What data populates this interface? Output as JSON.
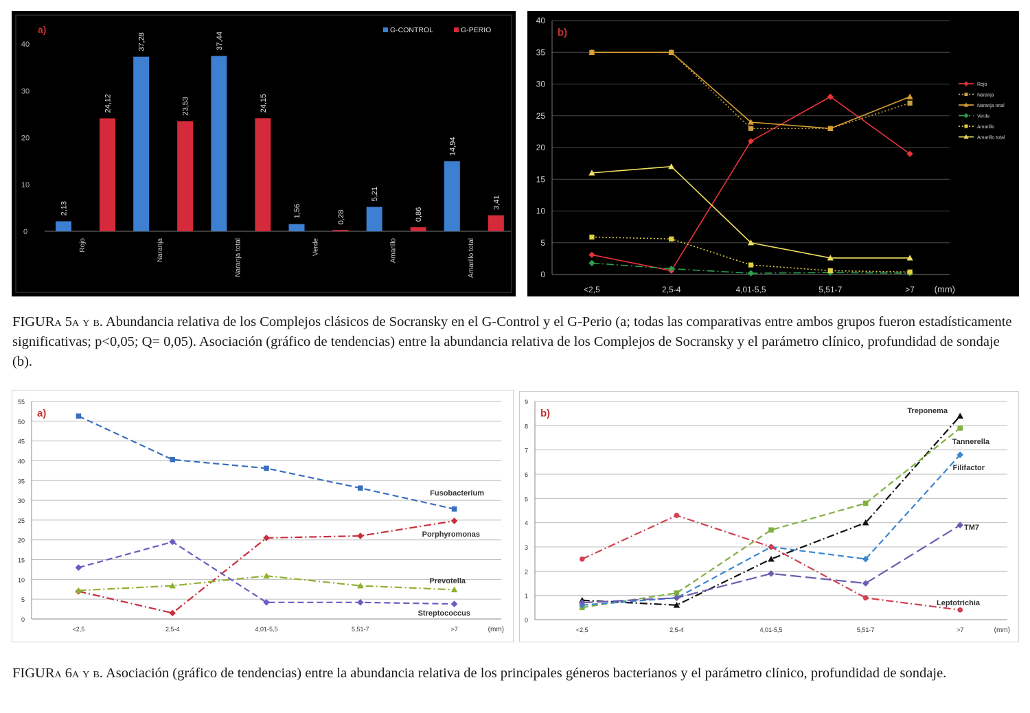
{
  "caption5": {
    "label": "FIGURa 5a y b.",
    "text": "Abundancia relativa de los Complejos clásicos de Socransky en el G-Control y el G-Perio (a; todas las comparativas entre ambos grupos fueron estadísticamente significativas; p<0,05; Q= 0,05). Asociación (gráfico de tendencias) entre la abundancia relativa de los Complejos de Socransky y el parámetro clínico, profundidad de sondaje (b)."
  },
  "caption6": {
    "label": "FIGURa 6a y b.",
    "text": "Asociación (gráfico de tendencias) entre la abundancia relativa de los principales géneros bacterianos y el parámetro clínico, profundidad de sondaje."
  },
  "chart_data": [
    {
      "id": "fig5a",
      "type": "bar",
      "panel_label": "a)",
      "categories": [
        "Rojo",
        "Naranja",
        "Naranja total",
        "Verde",
        "Amarillo",
        "Amarillo total"
      ],
      "series": [
        {
          "name": "G-CONTROL",
          "color": "#3d7fd1",
          "values": [
            2.13,
            37.28,
            37.44,
            1.56,
            5.21,
            14.94
          ],
          "labels": [
            "2,13",
            "37,28",
            "37,44",
            "1,56",
            "5,21",
            "14,94"
          ]
        },
        {
          "name": "G-PERIO",
          "color": "#d42a3a",
          "values": [
            24.12,
            23.53,
            24.15,
            0.28,
            0.86,
            3.41
          ],
          "labels": [
            "24,12",
            "23,53",
            "24,15",
            "0,28",
            "0,86",
            "3,41"
          ]
        }
      ],
      "ylim": [
        0,
        45
      ],
      "yticks": [
        0,
        10,
        20,
        30,
        40
      ],
      "legend_position": "top-right",
      "grid": false
    },
    {
      "id": "fig5b",
      "type": "line",
      "panel_label": "b)",
      "categories": [
        "<2,5",
        "2,5-4",
        "4,01-5,5",
        "5,51-7",
        ">7"
      ],
      "unit_label": "(mm)",
      "ylim": [
        0,
        40
      ],
      "yticks": [
        0,
        5,
        10,
        15,
        20,
        25,
        30,
        35,
        40
      ],
      "grid": true,
      "legend_position": "right",
      "series": [
        {
          "name": "Rojo",
          "color": "#e8333a",
          "dash": "solid",
          "marker": "diamond",
          "values": [
            3.1,
            0.6,
            21,
            28,
            19
          ]
        },
        {
          "name": "Naranja",
          "color": "#c9a040",
          "dash": "dotted",
          "marker": "square",
          "values": [
            35,
            35,
            23,
            23,
            27
          ]
        },
        {
          "name": "Naranja total",
          "color": "#d8a030",
          "dash": "solid",
          "marker": "triangle",
          "values": [
            35,
            35,
            24,
            23,
            28
          ]
        },
        {
          "name": "Verde",
          "color": "#2ea050",
          "dash": "dashdot",
          "marker": "diamond",
          "values": [
            1.8,
            0.9,
            0.2,
            0.3,
            0.2
          ]
        },
        {
          "name": "Amarillo",
          "color": "#e0d040",
          "dash": "dotted",
          "marker": "square",
          "values": [
            5.9,
            5.6,
            1.5,
            0.6,
            0.4
          ]
        },
        {
          "name": "Amarillo total",
          "color": "#f0e060",
          "dash": "solid",
          "marker": "triangle",
          "values": [
            16,
            17,
            5,
            2.6,
            2.6
          ]
        }
      ]
    },
    {
      "id": "fig6a",
      "type": "line",
      "panel_label": "a)",
      "categories": [
        "<2,5",
        "2,5-4",
        "4,01-5,5",
        "5,51-7",
        ">7"
      ],
      "unit_label": "(mm)",
      "ylim": [
        0,
        55
      ],
      "yticks": [
        0,
        5,
        10,
        15,
        20,
        25,
        30,
        35,
        40,
        45,
        50,
        55
      ],
      "grid": true,
      "legend_position": "none",
      "series": [
        {
          "name": "Fusobacterium",
          "color": "#3a6fc0",
          "dash": "dashed",
          "marker": "square",
          "values": [
            51.3,
            40.3,
            38.1,
            33.1,
            27.8
          ]
        },
        {
          "name": "Porphyromonas",
          "color": "#c83040",
          "dash": "dashdot",
          "marker": "diamond",
          "values": [
            7,
            1.5,
            20.5,
            21,
            24.8
          ]
        },
        {
          "name": "Prevotella",
          "color": "#90b030",
          "dash": "dashdot",
          "marker": "triangle",
          "values": [
            7.2,
            8.4,
            10.9,
            8.4,
            7.4
          ]
        },
        {
          "name": "Streptococcus",
          "color": "#6a5cc0",
          "dash": "dashed",
          "marker": "diamond",
          "values": [
            13,
            19.5,
            4.2,
            4.2,
            3.8
          ]
        }
      ]
    },
    {
      "id": "fig6b",
      "type": "line",
      "panel_label": "b)",
      "categories": [
        "<2,5",
        "2,5-4",
        "4,01-5,5",
        "5,51-7",
        ">7"
      ],
      "unit_label": "(mm)",
      "ylim": [
        0,
        9
      ],
      "yticks": [
        0,
        1,
        2,
        3,
        4,
        5,
        6,
        7,
        8,
        9
      ],
      "grid": true,
      "legend_position": "none",
      "series": [
        {
          "name": "Treponema",
          "color": "#111111",
          "dash": "dashdot",
          "marker": "triangle",
          "values": [
            0.8,
            0.6,
            2.5,
            4,
            8.4
          ]
        },
        {
          "name": "Tannerella",
          "color": "#80b040",
          "dash": "dashed",
          "marker": "square",
          "values": [
            0.5,
            1.1,
            3.7,
            4.8,
            7.9
          ]
        },
        {
          "name": "Filifactor",
          "color": "#3a86d0",
          "dash": "dashed",
          "marker": "diamond",
          "values": [
            0.6,
            0.9,
            3,
            2.5,
            6.8
          ]
        },
        {
          "name": "TM7",
          "color": "#6e5cb0",
          "dash": "longdash",
          "marker": "diamond",
          "values": [
            0.7,
            0.9,
            1.9,
            1.5,
            3.9
          ]
        },
        {
          "name": "Leptotrichia",
          "color": "#d04050",
          "dash": "dashdot",
          "marker": "circle",
          "values": [
            2.5,
            4.3,
            3,
            0.9,
            0.4
          ]
        }
      ]
    }
  ]
}
